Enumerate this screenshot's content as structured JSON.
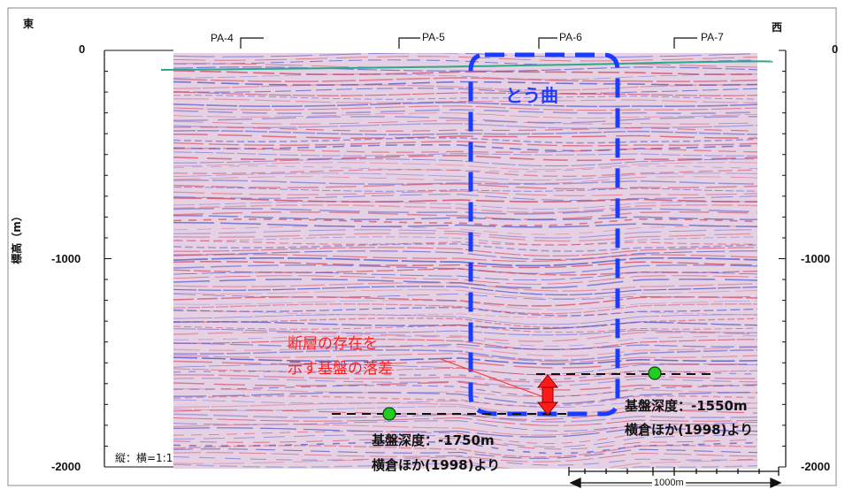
{
  "directions": {
    "east": "東",
    "west": "西"
  },
  "y_axis": {
    "label": "標高（m）",
    "ticks_left": [
      "0",
      "-1000",
      "-2000"
    ],
    "ticks_right": [
      "0",
      "-1000",
      "-2000"
    ]
  },
  "stations": [
    "PA-4",
    "PA-5",
    "PA-6",
    "PA-7"
  ],
  "annotations": {
    "fold_label": "とう曲",
    "fault_label_line1": "断層の存在を",
    "fault_label_line2": "示す基盤の落差",
    "basement_left_depth": "基盤深度：-1750m",
    "basement_left_source": "横倉ほか(1998)より",
    "basement_right_depth": "基盤深度：-1550m",
    "basement_right_source": "横倉ほか(1998)より",
    "scale_ratio": "縦：横=1:1",
    "scale_bar": "1000m"
  },
  "colors": {
    "seismic_red": "#d4455a",
    "seismic_blue": "#4550c8",
    "background": "#e8d2e4",
    "fold_box": "#1a3cff",
    "arrow": "#ff1a1a",
    "marker": "#22cc22",
    "surface_line": "#2aaa8a"
  }
}
